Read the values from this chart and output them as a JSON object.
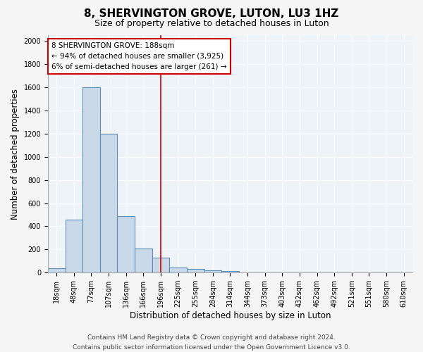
{
  "title1": "8, SHERVINGTON GROVE, LUTON, LU3 1HZ",
  "title2": "Size of property relative to detached houses in Luton",
  "xlabel": "Distribution of detached houses by size in Luton",
  "ylabel": "Number of detached properties",
  "bin_labels": [
    "18sqm",
    "48sqm",
    "77sqm",
    "107sqm",
    "136sqm",
    "166sqm",
    "196sqm",
    "225sqm",
    "255sqm",
    "284sqm",
    "314sqm",
    "344sqm",
    "373sqm",
    "403sqm",
    "432sqm",
    "462sqm",
    "492sqm",
    "521sqm",
    "551sqm",
    "580sqm",
    "610sqm"
  ],
  "bar_heights": [
    35,
    460,
    1600,
    1200,
    490,
    210,
    130,
    45,
    30,
    20,
    15,
    0,
    0,
    0,
    0,
    0,
    0,
    0,
    0,
    0,
    0
  ],
  "bar_color": "#c9d9e8",
  "bar_edge_color": "#5b8db8",
  "bar_edge_width": 0.8,
  "vline_x_index": 6,
  "vline_color": "#cc0000",
  "ylim": [
    0,
    2050
  ],
  "yticks": [
    0,
    200,
    400,
    600,
    800,
    1000,
    1200,
    1400,
    1600,
    1800,
    2000
  ],
  "annotation_text": "8 SHERVINGTON GROVE: 188sqm\n← 94% of detached houses are smaller (3,925)\n6% of semi-detached houses are larger (261) →",
  "annotation_box_color": "#ffffff",
  "annotation_box_edge": "#cc0000",
  "footer1": "Contains HM Land Registry data © Crown copyright and database right 2024.",
  "footer2": "Contains public sector information licensed under the Open Government Licence v3.0.",
  "background_color": "#eef3f7",
  "grid_color": "#ffffff",
  "fig_bg": "#f5f5f5",
  "title1_fontsize": 11,
  "title2_fontsize": 9,
  "axis_label_fontsize": 8.5,
  "tick_fontsize": 7,
  "annotation_fontsize": 7.5,
  "footer_fontsize": 6.5
}
